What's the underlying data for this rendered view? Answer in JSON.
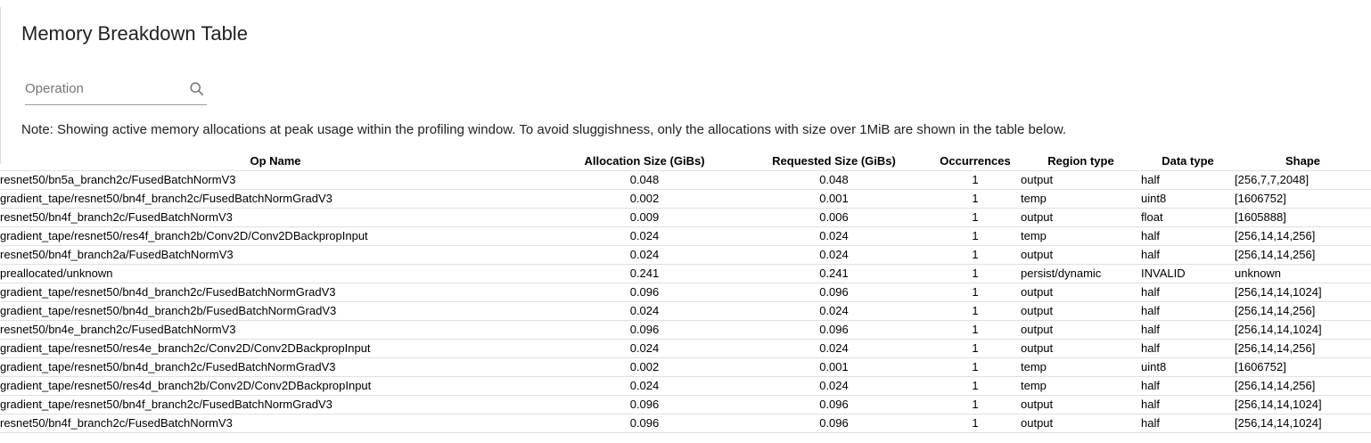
{
  "page": {
    "title": "Memory Breakdown Table"
  },
  "search": {
    "placeholder": "Operation",
    "icon": "search-icon"
  },
  "note": "Note: Showing active memory allocations at peak usage within the profiling window. To avoid sluggishness, only the allocations with size over 1MiB are shown in the table below.",
  "colors": {
    "text_primary": "#212121",
    "table_text": "#000000",
    "row_divider": "#e0e0e0",
    "input_underline": "#9e9e9e",
    "placeholder": "#757575",
    "icon_gray": "#757575"
  },
  "table": {
    "columns": [
      {
        "key": "op",
        "label": "Op Name"
      },
      {
        "key": "alloc",
        "label": "Allocation Size (GiBs)"
      },
      {
        "key": "req",
        "label": "Requested Size (GiBs)"
      },
      {
        "key": "occ",
        "label": "Occurrences"
      },
      {
        "key": "region",
        "label": "Region type"
      },
      {
        "key": "dtype",
        "label": "Data type"
      },
      {
        "key": "shape",
        "label": "Shape"
      }
    ],
    "rows": [
      {
        "op": "resnet50/bn5a_branch2c/FusedBatchNormV3",
        "alloc": "0.048",
        "req": "0.048",
        "occ": "1",
        "region": "output",
        "dtype": "half",
        "shape": "[256,7,7,2048]"
      },
      {
        "op": "gradient_tape/resnet50/bn4f_branch2c/FusedBatchNormGradV3",
        "alloc": "0.002",
        "req": "0.001",
        "occ": "1",
        "region": "temp",
        "dtype": "uint8",
        "shape": "[1606752]"
      },
      {
        "op": "resnet50/bn4f_branch2c/FusedBatchNormV3",
        "alloc": "0.009",
        "req": "0.006",
        "occ": "1",
        "region": "output",
        "dtype": "float",
        "shape": "[1605888]"
      },
      {
        "op": "gradient_tape/resnet50/res4f_branch2b/Conv2D/Conv2DBackpropInput",
        "alloc": "0.024",
        "req": "0.024",
        "occ": "1",
        "region": "temp",
        "dtype": "half",
        "shape": "[256,14,14,256]"
      },
      {
        "op": "resnet50/bn4f_branch2a/FusedBatchNormV3",
        "alloc": "0.024",
        "req": "0.024",
        "occ": "1",
        "region": "output",
        "dtype": "half",
        "shape": "[256,14,14,256]"
      },
      {
        "op": "preallocated/unknown",
        "alloc": "0.241",
        "req": "0.241",
        "occ": "1",
        "region": "persist/dynamic",
        "dtype": "INVALID",
        "shape": "unknown"
      },
      {
        "op": "gradient_tape/resnet50/bn4d_branch2c/FusedBatchNormGradV3",
        "alloc": "0.096",
        "req": "0.096",
        "occ": "1",
        "region": "output",
        "dtype": "half",
        "shape": "[256,14,14,1024]"
      },
      {
        "op": "gradient_tape/resnet50/bn4d_branch2b/FusedBatchNormGradV3",
        "alloc": "0.024",
        "req": "0.024",
        "occ": "1",
        "region": "output",
        "dtype": "half",
        "shape": "[256,14,14,256]"
      },
      {
        "op": "resnet50/bn4e_branch2c/FusedBatchNormV3",
        "alloc": "0.096",
        "req": "0.096",
        "occ": "1",
        "region": "output",
        "dtype": "half",
        "shape": "[256,14,14,1024]"
      },
      {
        "op": "gradient_tape/resnet50/res4e_branch2c/Conv2D/Conv2DBackpropInput",
        "alloc": "0.024",
        "req": "0.024",
        "occ": "1",
        "region": "output",
        "dtype": "half",
        "shape": "[256,14,14,256]"
      },
      {
        "op": "gradient_tape/resnet50/bn4d_branch2c/FusedBatchNormGradV3",
        "alloc": "0.002",
        "req": "0.001",
        "occ": "1",
        "region": "temp",
        "dtype": "uint8",
        "shape": "[1606752]"
      },
      {
        "op": "gradient_tape/resnet50/res4d_branch2b/Conv2D/Conv2DBackpropInput",
        "alloc": "0.024",
        "req": "0.024",
        "occ": "1",
        "region": "temp",
        "dtype": "half",
        "shape": "[256,14,14,256]"
      },
      {
        "op": "gradient_tape/resnet50/bn4f_branch2c/FusedBatchNormGradV3",
        "alloc": "0.096",
        "req": "0.096",
        "occ": "1",
        "region": "output",
        "dtype": "half",
        "shape": "[256,14,14,1024]"
      },
      {
        "op": "resnet50/bn4f_branch2c/FusedBatchNormV3",
        "alloc": "0.096",
        "req": "0.096",
        "occ": "1",
        "region": "output",
        "dtype": "half",
        "shape": "[256,14,14,1024]"
      }
    ]
  }
}
